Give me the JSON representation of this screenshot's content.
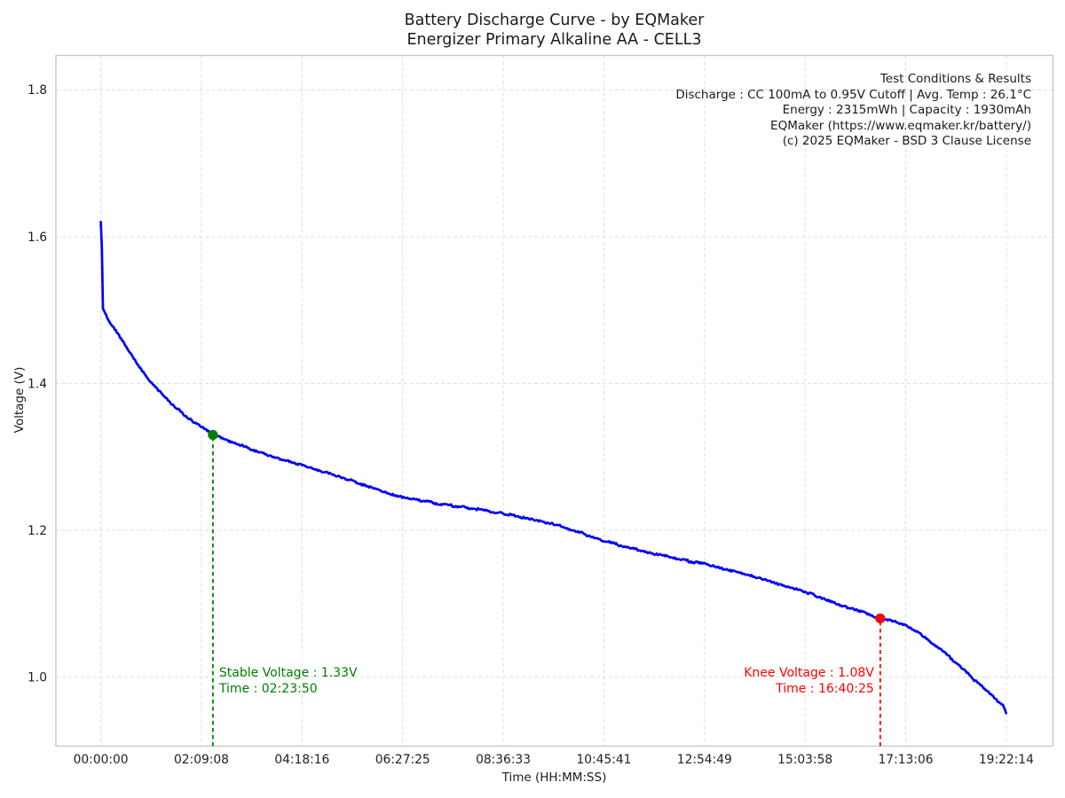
{
  "chart_data": {
    "type": "line",
    "title": "Battery Discharge Curve - by EQMaker",
    "subtitle": "Energizer Primary Alkaline AA - CELL3",
    "xlabel": "Time (HH:MM:SS)",
    "ylabel": "Voltage (V)",
    "grid": true,
    "legend": false,
    "xlim_seconds": [
      -3460,
      73330
    ],
    "ylim_volts": [
      0.906,
      1.847
    ],
    "x_tick_seconds": [
      0,
      7748,
      15496,
      23245,
      30993,
      38741,
      46489,
      54238,
      61986,
      69734
    ],
    "x_tick_labels": [
      "00:00:00",
      "02:09:08",
      "04:18:16",
      "06:27:25",
      "08:36:33",
      "10:45:41",
      "12:54:49",
      "15:03:58",
      "17:13:06",
      "19:22:14"
    ],
    "y_tick_values": [
      1.0,
      1.2,
      1.4,
      1.6,
      1.8
    ],
    "y_tick_labels": [
      "1.0",
      "1.2",
      "1.4",
      "1.6",
      "1.8"
    ],
    "info_lines": [
      "Test Conditions & Results",
      "Discharge : CC 100mA to 0.95V Cutoff | Avg. Temp : 26.1°C",
      "Energy : 2315mWh | Capacity : 1930mAh",
      "EQMaker (https://www.eqmaker.kr/battery/)",
      "(c) 2025 EQMaker - BSD 3 Clause License"
    ],
    "colors": {
      "curve": "#0000ff",
      "stable": "#008000",
      "knee": "#ff0000",
      "grid": "#dedede",
      "spine": "#c8c8c8",
      "text": "#1a1a1a"
    },
    "series": [
      {
        "name": "discharge-curve",
        "color": "#0000ff",
        "points_time_s_voltage_v": [
          [
            0,
            1.62
          ],
          [
            50,
            1.612
          ],
          [
            110,
            1.56
          ],
          [
            140,
            1.503
          ],
          [
            300,
            1.497
          ],
          [
            700,
            1.484
          ],
          [
            1400,
            1.465
          ],
          [
            2100,
            1.446
          ],
          [
            3000,
            1.421
          ],
          [
            4100,
            1.396
          ],
          [
            5300,
            1.375
          ],
          [
            6400,
            1.358
          ],
          [
            7500,
            1.344
          ],
          [
            8630,
            1.33
          ],
          [
            10500,
            1.318
          ],
          [
            12800,
            1.302
          ],
          [
            15500,
            1.289
          ],
          [
            17500,
            1.278
          ],
          [
            19600,
            1.266
          ],
          [
            21500,
            1.254
          ],
          [
            23245,
            1.245
          ],
          [
            26500,
            1.235
          ],
          [
            29000,
            1.229
          ],
          [
            31000,
            1.223
          ],
          [
            33000,
            1.215
          ],
          [
            35500,
            1.206
          ],
          [
            37000,
            1.196
          ],
          [
            38700,
            1.186
          ],
          [
            40500,
            1.177
          ],
          [
            42400,
            1.169
          ],
          [
            44500,
            1.161
          ],
          [
            46430,
            1.154
          ],
          [
            48200,
            1.146
          ],
          [
            50000,
            1.138
          ],
          [
            52000,
            1.128
          ],
          [
            54150,
            1.117
          ],
          [
            56000,
            1.104
          ],
          [
            58000,
            1.092
          ],
          [
            60025,
            1.08
          ],
          [
            61000,
            1.076
          ],
          [
            62090,
            1.07
          ],
          [
            63000,
            1.06
          ],
          [
            64070,
            1.046
          ],
          [
            65200,
            1.03
          ],
          [
            66330,
            1.012
          ],
          [
            67300,
            0.996
          ],
          [
            68170,
            0.982
          ],
          [
            68900,
            0.97
          ],
          [
            69540,
            0.96
          ],
          [
            69734,
            0.95
          ]
        ]
      }
    ],
    "markers": [
      {
        "id": "stable",
        "time_s": 8630,
        "time_label": "02:23:50",
        "voltage_v": 1.33,
        "color": "#008000",
        "text_line1": "Stable Voltage : 1.33V",
        "text_line2": "Time : 02:23:50",
        "text_side": "right-of-line"
      },
      {
        "id": "knee",
        "time_s": 60025,
        "time_label": "16:40:25",
        "voltage_v": 1.08,
        "color": "#ff0000",
        "text_line1": "Knee Voltage : 1.08V",
        "text_line2": "Time : 16:40:25",
        "text_side": "left-of-line"
      }
    ]
  }
}
